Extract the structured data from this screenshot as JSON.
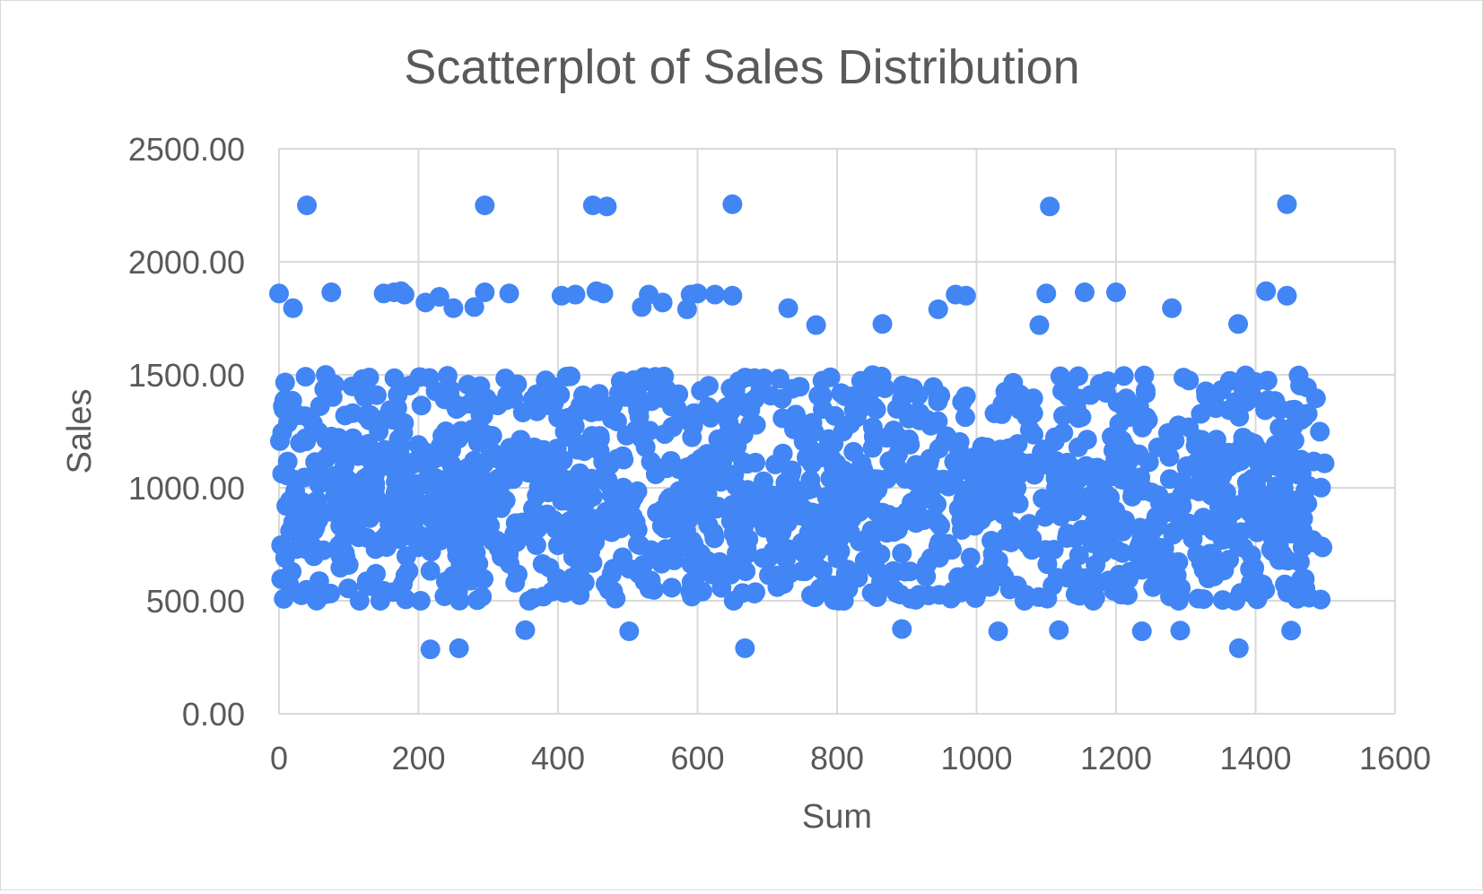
{
  "chart_data": {
    "type": "scatter",
    "title": "Scatterplot of Sales Distribution",
    "xlabel": "Sum",
    "ylabel": "Sales",
    "xlim": [
      0,
      1600
    ],
    "ylim": [
      0,
      2500
    ],
    "x_ticks": [
      0,
      200,
      400,
      600,
      800,
      1000,
      1200,
      1400,
      1600
    ],
    "x_tick_labels": [
      "0",
      "200",
      "400",
      "600",
      "800",
      "1000",
      "1200",
      "1400",
      "1600"
    ],
    "y_ticks": [
      0,
      500,
      1000,
      1500,
      2000,
      2500
    ],
    "y_tick_labels": [
      "0.00",
      "500.00",
      "1000.00",
      "1500.00",
      "2000.00",
      "2500.00"
    ],
    "grid": true,
    "legend": "none",
    "marker_color": "#4285f4",
    "gridline_color": "#d9d9d9",
    "outliers": {
      "x": [
        40,
        295,
        450,
        470,
        650,
        1105,
        1445,
        0,
        20,
        75,
        150,
        165,
        175,
        180,
        210,
        230,
        250,
        280,
        295,
        330,
        405,
        425,
        455,
        465,
        520,
        530,
        550,
        585,
        590,
        600,
        625,
        650,
        730,
        770,
        865,
        945,
        970,
        985,
        1090,
        1100,
        1155,
        1200,
        1280,
        1375,
        1415,
        1445,
        217,
        258,
        353,
        502,
        668,
        893,
        1031,
        1118,
        1237,
        1292,
        1376,
        1451
      ],
      "y": [
        2250,
        2250,
        2250,
        2245,
        2255,
        2245,
        2255,
        1860,
        1795,
        1865,
        1860,
        1865,
        1870,
        1855,
        1820,
        1845,
        1795,
        1800,
        1865,
        1860,
        1850,
        1855,
        1870,
        1860,
        1800,
        1855,
        1820,
        1790,
        1855,
        1860,
        1855,
        1850,
        1795,
        1720,
        1725,
        1790,
        1855,
        1850,
        1720,
        1860,
        1865,
        1865,
        1795,
        1725,
        1870,
        1850,
        285,
        290,
        370,
        365,
        290,
        375,
        365,
        370,
        365,
        368,
        290,
        368
      ]
    },
    "bulk": {
      "n": 1300,
      "x_range": [
        0,
        1500
      ],
      "y_range": [
        350,
        1580
      ],
      "y_center": 950
    }
  }
}
